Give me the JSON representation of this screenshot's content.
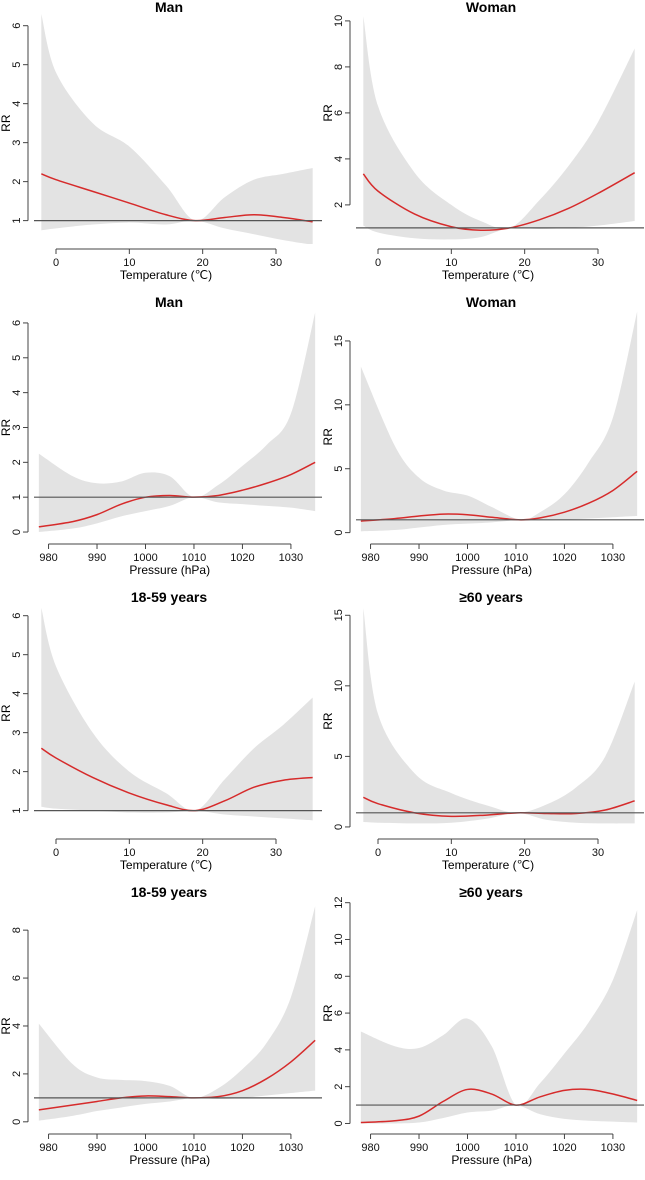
{
  "colors": {
    "band": "#e3e3e3",
    "curve": "#d62b2b",
    "reference": "#555555",
    "axis": "#444444"
  },
  "chart_data": [
    {
      "type": "line",
      "title": "Man",
      "xlabel": "Temperature (℃)",
      "ylabel": "RR",
      "xlim": [
        -3,
        36
      ],
      "ylim": [
        0.4,
        6.3
      ],
      "xticks": [
        0,
        10,
        20,
        30
      ],
      "yticks": [
        1,
        2,
        3,
        4,
        5,
        6
      ],
      "reference_y": 1,
      "x": [
        -2,
        0,
        5,
        10,
        15,
        19,
        23,
        27,
        31,
        35
      ],
      "rr": [
        2.2,
        2.05,
        1.75,
        1.45,
        1.15,
        1.0,
        1.08,
        1.15,
        1.08,
        0.97
      ],
      "lower": [
        0.75,
        0.8,
        0.9,
        0.95,
        0.9,
        1.0,
        0.8,
        0.65,
        0.5,
        0.38
      ],
      "upper": [
        6.3,
        4.8,
        3.5,
        2.9,
        1.9,
        1.0,
        1.6,
        2.05,
        2.2,
        2.35
      ]
    },
    {
      "type": "line",
      "title": "Woman",
      "xlabel": "Temperature (℃)",
      "ylabel": "RR",
      "xlim": [
        -3,
        36
      ],
      "ylim": [
        0.3,
        10.3
      ],
      "xticks": [
        0,
        10,
        20,
        30
      ],
      "yticks": [
        2,
        4,
        6,
        8,
        10
      ],
      "reference_y": 1,
      "x": [
        -2,
        0,
        5,
        10,
        14,
        18,
        22,
        26,
        30,
        35
      ],
      "rr": [
        3.35,
        2.6,
        1.6,
        1.05,
        0.9,
        1.0,
        1.35,
        1.85,
        2.5,
        3.4
      ],
      "lower": [
        1.1,
        0.8,
        0.55,
        0.5,
        0.6,
        1.0,
        0.95,
        1.0,
        1.1,
        1.3
      ],
      "upper": [
        10.2,
        6.3,
        3.4,
        2.0,
        1.3,
        1.0,
        2.2,
        3.7,
        5.6,
        8.8
      ]
    },
    {
      "type": "line",
      "title": "Man",
      "xlabel": "Pressure (hPa)",
      "ylabel": "RR",
      "xlim": [
        977,
        1036
      ],
      "ylim": [
        -0.2,
        6.4
      ],
      "xticks": [
        980,
        990,
        1000,
        1010,
        1020,
        1030
      ],
      "yticks": [
        0,
        1,
        2,
        3,
        4,
        5,
        6
      ],
      "reference_y": 1,
      "x": [
        978,
        985,
        990,
        995,
        1000,
        1005,
        1010,
        1015,
        1020,
        1025,
        1030,
        1035
      ],
      "rr": [
        0.15,
        0.3,
        0.5,
        0.8,
        1.0,
        1.05,
        1.0,
        1.05,
        1.2,
        1.4,
        1.65,
        2.0
      ],
      "lower": [
        0.0,
        0.1,
        0.25,
        0.45,
        0.6,
        0.75,
        1.0,
        0.85,
        0.8,
        0.75,
        0.7,
        0.6
      ],
      "upper": [
        2.25,
        1.6,
        1.4,
        1.45,
        1.7,
        1.6,
        1.0,
        1.35,
        1.9,
        2.5,
        3.4,
        6.3
      ]
    },
    {
      "type": "line",
      "title": "Woman",
      "xlabel": "Pressure (hPa)",
      "ylabel": "RR",
      "xlim": [
        977,
        1036
      ],
      "ylim": [
        -0.5,
        17.5
      ],
      "xticks": [
        980,
        990,
        1000,
        1010,
        1020,
        1030
      ],
      "yticks": [
        0,
        5,
        10,
        15
      ],
      "reference_y": 1,
      "x": [
        978,
        985,
        990,
        995,
        1000,
        1005,
        1011,
        1015,
        1020,
        1025,
        1030,
        1035
      ],
      "rr": [
        0.9,
        1.1,
        1.3,
        1.45,
        1.4,
        1.2,
        1.0,
        1.15,
        1.6,
        2.3,
        3.3,
        4.8
      ],
      "lower": [
        0.1,
        0.2,
        0.4,
        0.6,
        0.7,
        0.8,
        1.0,
        0.95,
        1.0,
        1.1,
        1.2,
        1.3
      ],
      "upper": [
        13.0,
        6.8,
        4.3,
        3.3,
        2.9,
        2.0,
        1.0,
        1.6,
        3.0,
        5.5,
        9.0,
        17.3
      ]
    },
    {
      "type": "line",
      "title": "18-59 years",
      "xlabel": "Temperature (℃)",
      "ylabel": "RR",
      "xlim": [
        -3,
        36
      ],
      "ylim": [
        0.4,
        6.3
      ],
      "xticks": [
        0,
        10,
        20,
        30
      ],
      "yticks": [
        1,
        2,
        3,
        4,
        5,
        6
      ],
      "reference_y": 1,
      "x": [
        -2,
        0,
        5,
        10,
        15,
        19,
        23,
        27,
        31,
        35
      ],
      "rr": [
        2.6,
        2.35,
        1.85,
        1.45,
        1.15,
        1.0,
        1.25,
        1.6,
        1.78,
        1.85
      ],
      "lower": [
        1.1,
        1.05,
        1.0,
        0.95,
        0.95,
        1.0,
        0.9,
        0.85,
        0.8,
        0.75
      ],
      "upper": [
        6.2,
        4.7,
        3.0,
        2.0,
        1.45,
        1.0,
        1.8,
        2.6,
        3.2,
        3.9
      ]
    },
    {
      "type": "line",
      "title": "≥60 years",
      "xlabel": "Temperature (℃)",
      "ylabel": "RR",
      "xlim": [
        -3,
        36
      ],
      "ylim": [
        -0.5,
        15.8
      ],
      "xticks": [
        0,
        10,
        20,
        30
      ],
      "yticks": [
        0,
        5,
        10,
        15
      ],
      "reference_y": 1,
      "x": [
        -2,
        0,
        5,
        10,
        15,
        19,
        23,
        27,
        31,
        35
      ],
      "rr": [
        2.1,
        1.65,
        1.0,
        0.75,
        0.85,
        1.0,
        0.95,
        0.95,
        1.2,
        1.85
      ],
      "lower": [
        0.35,
        0.3,
        0.25,
        0.3,
        0.6,
        1.0,
        0.5,
        0.3,
        0.25,
        0.25
      ],
      "upper": [
        15.5,
        8.0,
        3.8,
        2.4,
        1.5,
        1.0,
        1.6,
        2.8,
        5.0,
        10.3
      ]
    },
    {
      "type": "line",
      "title": "18-59 years",
      "xlabel": "Pressure (hPa)",
      "ylabel": "RR",
      "xlim": [
        977,
        1036
      ],
      "ylim": [
        -0.3,
        9.3
      ],
      "xticks": [
        980,
        990,
        1000,
        1010,
        1020,
        1030
      ],
      "yticks": [
        0,
        2,
        4,
        6,
        8
      ],
      "reference_y": 1,
      "x": [
        978,
        985,
        990,
        995,
        1000,
        1005,
        1010,
        1015,
        1020,
        1025,
        1030,
        1035
      ],
      "rr": [
        0.5,
        0.7,
        0.85,
        1.0,
        1.08,
        1.05,
        1.0,
        1.05,
        1.3,
        1.8,
        2.5,
        3.4
      ],
      "lower": [
        0.05,
        0.25,
        0.45,
        0.6,
        0.75,
        0.85,
        1.0,
        0.95,
        1.0,
        1.1,
        1.2,
        1.3
      ],
      "upper": [
        4.1,
        2.4,
        1.85,
        1.75,
        1.7,
        1.5,
        1.0,
        1.4,
        2.2,
        3.3,
        5.2,
        9.0
      ]
    },
    {
      "type": "line",
      "title": "≥60 years",
      "xlabel": "Pressure (hPa)",
      "ylabel": "RR",
      "xlim": [
        977,
        1036
      ],
      "ylim": [
        -0.3,
        12.2
      ],
      "xticks": [
        980,
        990,
        1000,
        1010,
        1020,
        1030
      ],
      "yticks": [
        0,
        2,
        4,
        6,
        8,
        10,
        12
      ],
      "reference_y": 1,
      "x": [
        978,
        985,
        990,
        995,
        1000,
        1005,
        1010,
        1015,
        1020,
        1025,
        1030,
        1035
      ],
      "rr": [
        0.05,
        0.15,
        0.4,
        1.2,
        1.85,
        1.6,
        1.0,
        1.45,
        1.8,
        1.85,
        1.6,
        1.25
      ],
      "lower": [
        0.0,
        0.0,
        0.05,
        0.3,
        0.6,
        0.7,
        1.0,
        0.5,
        0.25,
        0.15,
        0.1,
        0.05
      ],
      "upper": [
        5.0,
        4.2,
        4.1,
        4.8,
        5.7,
        4.2,
        1.0,
        2.2,
        3.8,
        5.5,
        7.8,
        11.6
      ]
    }
  ]
}
